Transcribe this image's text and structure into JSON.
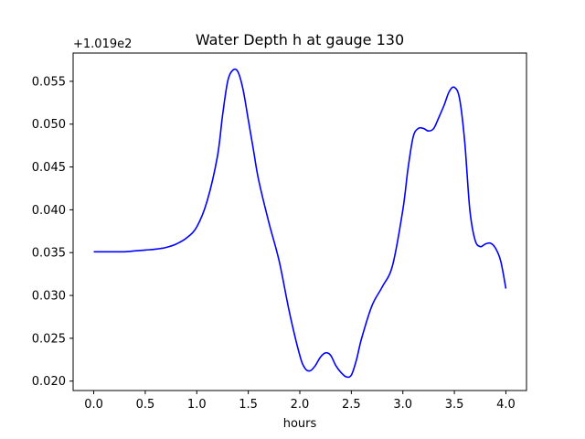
{
  "chart_data": {
    "type": "line",
    "title": "Water Depth h at gauge 130",
    "xlabel": "hours",
    "ylabel": "",
    "y_offset_label": "+1.019e2",
    "xlim": [
      -0.2,
      4.2
    ],
    "ylim": [
      0.0189,
      0.0583
    ],
    "xticks": [
      0.0,
      0.5,
      1.0,
      1.5,
      2.0,
      2.5,
      3.0,
      3.5,
      4.0
    ],
    "xtick_labels": [
      "0.0",
      "0.5",
      "1.0",
      "1.5",
      "2.0",
      "2.5",
      "3.0",
      "3.5",
      "4.0"
    ],
    "yticks": [
      0.02,
      0.025,
      0.03,
      0.035,
      0.04,
      0.045,
      0.05,
      0.055
    ],
    "ytick_labels": [
      "0.020",
      "0.025",
      "0.030",
      "0.035",
      "0.040",
      "0.045",
      "0.050",
      "0.055"
    ],
    "grid": false,
    "series": [
      {
        "color": "#0000ff",
        "x": [
          0.0,
          0.1,
          0.2,
          0.3,
          0.4,
          0.5,
          0.6,
          0.7,
          0.8,
          0.9,
          1.0,
          1.1,
          1.2,
          1.25,
          1.3,
          1.35,
          1.4,
          1.45,
          1.5,
          1.55,
          1.6,
          1.7,
          1.8,
          1.9,
          2.0,
          2.05,
          2.1,
          2.15,
          2.2,
          2.25,
          2.3,
          2.35,
          2.4,
          2.45,
          2.5,
          2.55,
          2.6,
          2.7,
          2.8,
          2.9,
          3.0,
          3.05,
          3.1,
          3.15,
          3.2,
          3.25,
          3.3,
          3.35,
          3.4,
          3.45,
          3.5,
          3.55,
          3.6,
          3.65,
          3.7,
          3.75,
          3.8,
          3.85,
          3.9,
          3.95,
          4.0
        ],
        "y": [
          0.0351,
          0.0351,
          0.0351,
          0.0351,
          0.0352,
          0.0353,
          0.0354,
          0.0356,
          0.036,
          0.0367,
          0.038,
          0.041,
          0.0462,
          0.051,
          0.055,
          0.0563,
          0.0561,
          0.054,
          0.0505,
          0.047,
          0.0435,
          0.0385,
          0.034,
          0.028,
          0.023,
          0.0215,
          0.0212,
          0.0218,
          0.0228,
          0.0233,
          0.023,
          0.0218,
          0.021,
          0.0205,
          0.0207,
          0.0225,
          0.025,
          0.0288,
          0.031,
          0.0335,
          0.04,
          0.0448,
          0.0485,
          0.0495,
          0.0495,
          0.0492,
          0.0495,
          0.0508,
          0.0522,
          0.0538,
          0.0543,
          0.053,
          0.048,
          0.04,
          0.0365,
          0.0357,
          0.036,
          0.0361,
          0.0355,
          0.034,
          0.0308
        ]
      }
    ]
  }
}
